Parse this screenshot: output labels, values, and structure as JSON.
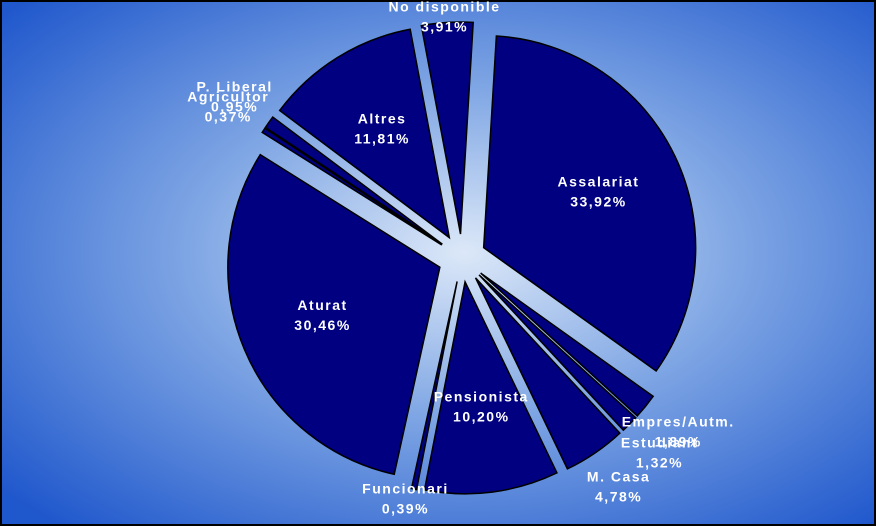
{
  "chart_data": {
    "type": "pie",
    "categories": [
      "Assalariat",
      "Empres/Autm.",
      "Estudiant",
      "M. Casa",
      "Pensionista",
      "Funcionari",
      "Aturat",
      "Agricultor",
      "P. Liberal",
      "Altres",
      "No disponible"
    ],
    "values": [
      33.92,
      1.89,
      1.32,
      4.78,
      10.2,
      0.39,
      30.46,
      0.37,
      0.95,
      11.81,
      3.91
    ],
    "value_labels": [
      "33,92%",
      "1,89%",
      "1,32%",
      "4,78%",
      "10,20%",
      "0,39%",
      "30,46%",
      "0,37%",
      "0,95%",
      "11,81%",
      "3,91%"
    ],
    "color": "#000080"
  }
}
